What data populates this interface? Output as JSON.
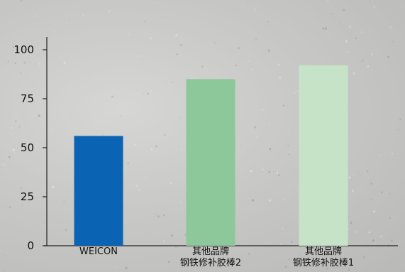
{
  "chart_data": {
    "type": "bar",
    "categories": [
      [
        "WEICON"
      ],
      [
        "其他品牌",
        "钢铁修补胶棒2"
      ],
      [
        "其他品牌",
        "钢铁修补胶棒1"
      ]
    ],
    "values": [
      56,
      85,
      92
    ],
    "colors": [
      "#0a63b3",
      "#8dc89a",
      "#c7e3c7"
    ],
    "ylim": [
      0,
      100
    ],
    "yticks": [
      0,
      25,
      50,
      75,
      100
    ],
    "title": "",
    "xlabel": "",
    "ylabel": "",
    "grid": false,
    "legend": "none"
  }
}
